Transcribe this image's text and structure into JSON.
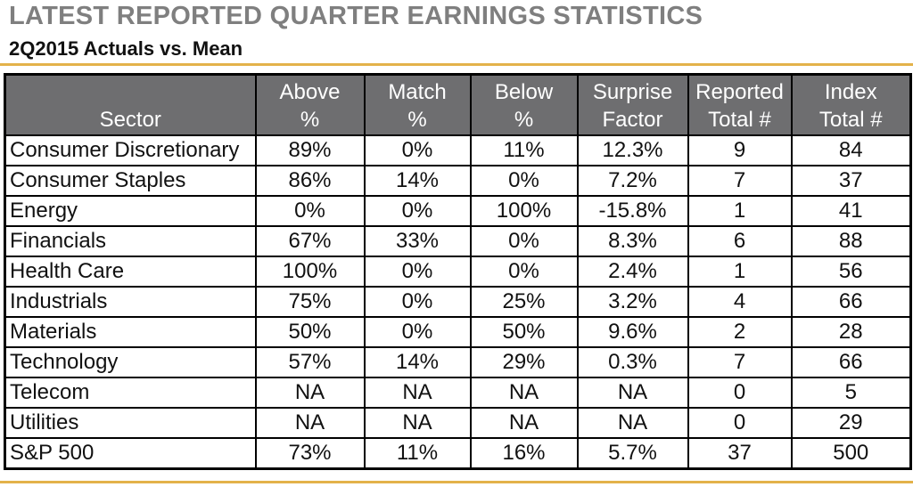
{
  "header": {
    "title": "LATEST REPORTED QUARTER EARNINGS STATISTICS",
    "subtitle": "2Q2015 Actuals vs. Mean"
  },
  "chart_data": {
    "type": "table",
    "columns": [
      {
        "line1": "",
        "line2": "Sector"
      },
      {
        "line1": "Above",
        "line2": "%"
      },
      {
        "line1": "Match",
        "line2": "%"
      },
      {
        "line1": "Below",
        "line2": "%"
      },
      {
        "line1": "Surprise",
        "line2": "Factor"
      },
      {
        "line1": "Reported",
        "line2": "Total #"
      },
      {
        "line1": "Index",
        "line2": "Total #"
      }
    ],
    "rows": [
      {
        "sector": "Consumer Discretionary",
        "above": "89%",
        "match": "0%",
        "below": "11%",
        "surprise": "12.3%",
        "reported": "9",
        "index": "84"
      },
      {
        "sector": "Consumer Staples",
        "above": "86%",
        "match": "14%",
        "below": "0%",
        "surprise": "7.2%",
        "reported": "7",
        "index": "37"
      },
      {
        "sector": "Energy",
        "above": "0%",
        "match": "0%",
        "below": "100%",
        "surprise": "-15.8%",
        "reported": "1",
        "index": "41"
      },
      {
        "sector": "Financials",
        "above": "67%",
        "match": "33%",
        "below": "0%",
        "surprise": "8.3%",
        "reported": "6",
        "index": "88"
      },
      {
        "sector": "Health Care",
        "above": "100%",
        "match": "0%",
        "below": "0%",
        "surprise": "2.4%",
        "reported": "1",
        "index": "56"
      },
      {
        "sector": "Industrials",
        "above": "75%",
        "match": "0%",
        "below": "25%",
        "surprise": "3.2%",
        "reported": "4",
        "index": "66"
      },
      {
        "sector": "Materials",
        "above": "50%",
        "match": "0%",
        "below": "50%",
        "surprise": "9.6%",
        "reported": "2",
        "index": "28"
      },
      {
        "sector": "Technology",
        "above": "57%",
        "match": "14%",
        "below": "29%",
        "surprise": "0.3%",
        "reported": "7",
        "index": "66"
      },
      {
        "sector": "Telecom",
        "above": "NA",
        "match": "NA",
        "below": "NA",
        "surprise": "NA",
        "reported": "0",
        "index": "5"
      },
      {
        "sector": "Utilities",
        "above": "NA",
        "match": "NA",
        "below": "NA",
        "surprise": "NA",
        "reported": "0",
        "index": "29"
      },
      {
        "sector": "S&P 500",
        "above": "73%",
        "match": "11%",
        "below": "16%",
        "surprise": "5.7%",
        "reported": "37",
        "index": "500"
      }
    ]
  },
  "colors": {
    "header_fill": "#6e6e70",
    "accent_rule": "#e3b24a",
    "title_text": "#7f7f7f"
  }
}
